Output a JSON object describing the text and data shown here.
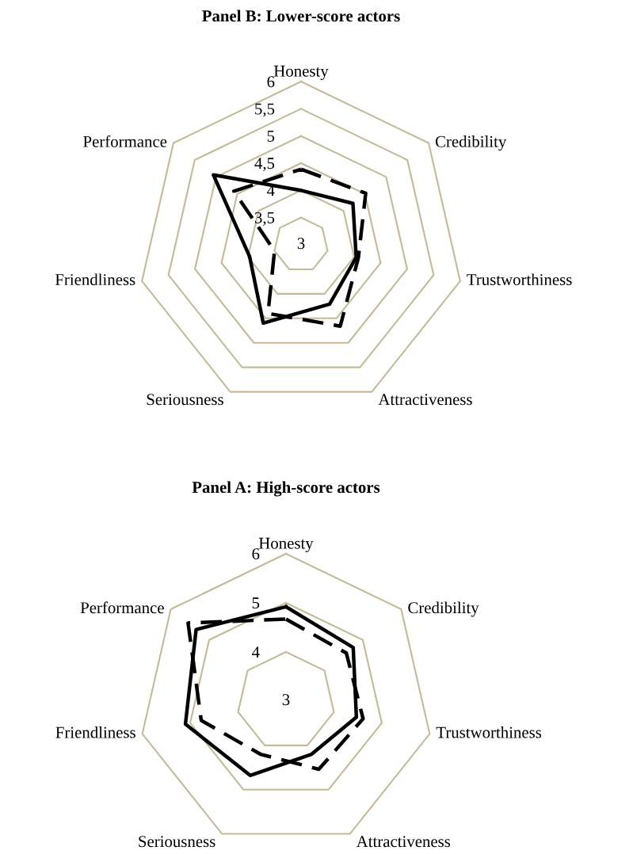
{
  "chart_data": [
    {
      "type": "radar",
      "title": "Panel B: Lower-score actors",
      "categories": [
        "Honesty",
        "Credibility",
        "Trustworthiness",
        "Attractiveness",
        "Seriousness",
        "Friendliness",
        "Performance"
      ],
      "series": [
        {
          "color": "#000000",
          "line_style": "solid",
          "values": [
            4.0,
            4.22,
            4.04,
            4.21,
            4.6,
            3.97,
            5.06
          ]
        },
        {
          "color": "#000000",
          "line_style": "dashed",
          "values": [
            4.39,
            4.52,
            4.08,
            4.66,
            4.4,
            3.5,
            4.58
          ]
        }
      ],
      "ylim": [
        3,
        6
      ],
      "yticks": [
        3,
        {
          "value": 3.5,
          "label": "3,5"
        },
        4,
        {
          "value": 4.5,
          "label": "4,5"
        },
        5,
        {
          "value": 5.5,
          "label": "5,5"
        },
        6
      ],
      "grid": true
    },
    {
      "type": "radar",
      "title": "Panel A: High-score actors",
      "categories": [
        "Honesty",
        "Credibility",
        "Trustworthiness",
        "Attractiveness",
        "Seriousness",
        "Friendliness",
        "Performance"
      ],
      "series": [
        {
          "color": "#000000",
          "line_style": "solid",
          "values": [
            4.92,
            4.75,
            4.47,
            4.2,
            4.68,
            5.1,
            5.34
          ]
        },
        {
          "color": "#000000",
          "line_style": "dashed",
          "values": [
            4.67,
            4.57,
            4.61,
            4.54,
            4.2,
            4.77,
            5.55
          ]
        }
      ],
      "ylim": [
        3,
        6
      ],
      "yticks": [
        3,
        4,
        5,
        6
      ],
      "grid": true
    }
  ]
}
